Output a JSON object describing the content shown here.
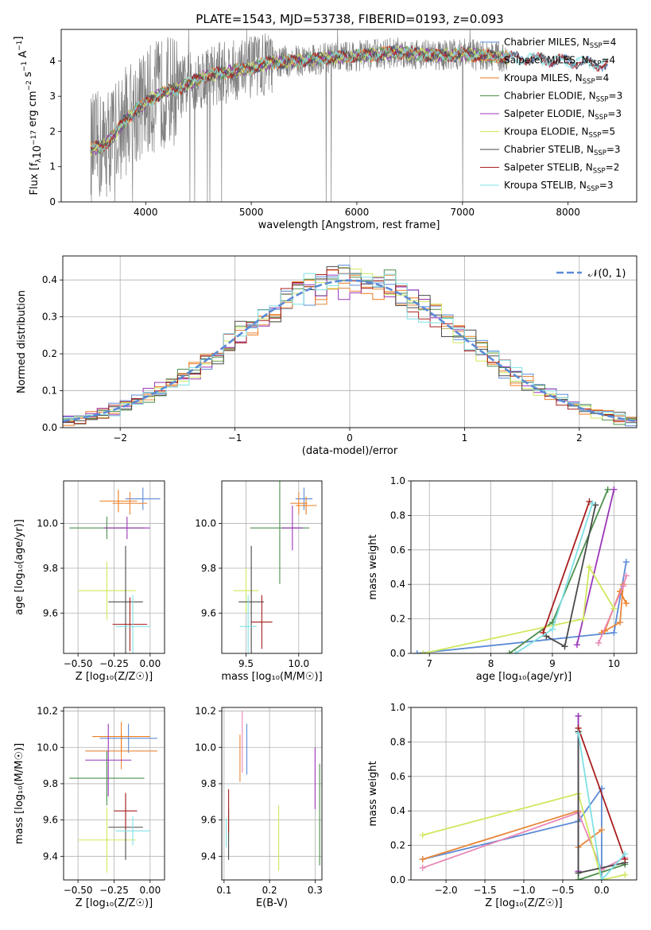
{
  "figure": {
    "title": "PLATE=1543, MJD=53738, FIBERID=0193, z=0.093"
  },
  "colors": {
    "Chabrier MILES": "#5b8bd6",
    "Salpeter MILES": "#e8873a",
    "Kroupa MILES": "#ee7b1e",
    "Chabrier ELODIE": "#4e8f4e",
    "Salpeter ELODIE": "#9a36b8",
    "Kroupa ELODIE": "#cfe85e",
    "Chabrier STELIB": "#4a4a4a",
    "Salpeter STELIB": "#a81d1d",
    "Kroupa STELIB": "#7fe0e4",
    "data": "#808080",
    "norm": "#5b8bd6",
    "pinkPoint": "#e887b5"
  },
  "chart_data": [
    {
      "id": "spectrum",
      "type": "line",
      "title": "PLATE=1543, MJD=53738, FIBERID=0193, z=0.093",
      "xlabel": "wavelength [Angstrom, rest frame]",
      "xlim": [
        3200,
        8650
      ],
      "ylim": [
        0,
        4.9
      ],
      "xticks": [
        4000,
        5000,
        6000,
        7000,
        8000
      ],
      "yticks": [
        0,
        1,
        2,
        3,
        4
      ],
      "legend": [
        "Chabrier MILES",
        "Salpeter MILES",
        "Kroupa MILES",
        "Chabrier ELODIE",
        "Salpeter ELODIE",
        "Kroupa ELODIE",
        "Chabrier STELIB",
        "Salpeter STELIB",
        "Kroupa STELIB"
      ],
      "legend_nssp": [
        4,
        4,
        4,
        3,
        3,
        5,
        3,
        2,
        3
      ],
      "legend_placement": "upper right",
      "continuum": [
        [
          3480,
          1.5
        ],
        [
          3600,
          1.6
        ],
        [
          3700,
          1.9
        ],
        [
          3800,
          2.3
        ],
        [
          3900,
          2.6
        ],
        [
          4000,
          2.8
        ],
        [
          4100,
          3.0
        ],
        [
          4200,
          3.15
        ],
        [
          4300,
          3.2
        ],
        [
          4400,
          3.35
        ],
        [
          4500,
          3.5
        ],
        [
          4600,
          3.6
        ],
        [
          4700,
          3.65
        ],
        [
          4800,
          3.7
        ],
        [
          4900,
          3.75
        ],
        [
          5000,
          3.8
        ],
        [
          5100,
          3.9
        ],
        [
          5200,
          3.95
        ],
        [
          5400,
          4.0
        ],
        [
          5600,
          4.05
        ],
        [
          5800,
          4.1
        ],
        [
          6000,
          4.15
        ],
        [
          6200,
          4.2
        ],
        [
          6400,
          4.25
        ],
        [
          6600,
          4.2
        ],
        [
          6800,
          4.15
        ],
        [
          7000,
          4.2
        ],
        [
          7200,
          4.15
        ],
        [
          7400,
          4.1
        ],
        [
          7700,
          4.05
        ],
        [
          8000,
          4.0
        ],
        [
          8300,
          3.9
        ]
      ]
    },
    {
      "id": "residuals",
      "type": "line",
      "xlabel": "(data-model)/error",
      "ylabel": "Normed distribution",
      "xlim": [
        -2.5,
        2.5
      ],
      "ylim": [
        0,
        0.465
      ],
      "xticks": [
        -2,
        -1,
        0,
        1,
        2
      ],
      "yticks": [
        0.0,
        0.1,
        0.2,
        0.3,
        0.4
      ],
      "gaussian_label": "𝒩(0, 1)",
      "grid": true
    },
    {
      "id": "age-vs-z",
      "type": "scatter",
      "xlabel": "Z [log₁₀(Z/Z☉)]",
      "ylabel": "age  [log₁₀(age/yr)]",
      "xlim": [
        -0.6,
        0.1
      ],
      "ylim": [
        9.42,
        10.19
      ],
      "xticks": [
        -0.5,
        -0.25,
        0.0
      ],
      "yticks": [
        9.6,
        9.8,
        10.0
      ],
      "grid": true,
      "points": [
        {
          "model": "Chabrier MILES",
          "x": -0.05,
          "xerr": 0.12,
          "y": 10.11,
          "yerr": 0.05
        },
        {
          "model": "Salpeter MILES",
          "x": -0.14,
          "xerr": 0.12,
          "y": 10.09,
          "yerr": 0.05
        },
        {
          "model": "Kroupa MILES",
          "x": -0.22,
          "xerr": 0.13,
          "y": 10.1,
          "yerr": 0.05
        },
        {
          "model": "Chabrier ELODIE",
          "x": -0.3,
          "xerr": 0.26,
          "y": 9.98,
          "yerr": 0.05
        },
        {
          "model": "Salpeter ELODIE",
          "x": -0.16,
          "xerr": 0.16,
          "y": 9.98,
          "yerr": 0.05
        },
        {
          "model": "Kroupa ELODIE",
          "x": -0.3,
          "xerr": 0.2,
          "y": 9.7,
          "yerr": 0.13
        },
        {
          "model": "Chabrier STELIB",
          "x": -0.17,
          "xerr": 0.12,
          "y": 9.65,
          "yerr": 0.25
        },
        {
          "model": "Salpeter STELIB",
          "x": -0.14,
          "xerr": 0.12,
          "y": 9.55,
          "yerr": 0.12
        },
        {
          "model": "Kroupa STELIB",
          "x": -0.12,
          "xerr": 0.12,
          "y": 9.54,
          "yerr": 0.14
        }
      ]
    },
    {
      "id": "age-vs-mass",
      "type": "scatter",
      "xlabel": "mass [log₁₀(M/M☉)]",
      "xlim": [
        9.27,
        10.22
      ],
      "ylim": [
        9.42,
        10.19
      ],
      "xticks": [
        9.5,
        10.0
      ],
      "yticks": [
        9.6,
        9.8,
        10.0
      ],
      "grid": true,
      "points": [
        {
          "model": "Chabrier MILES",
          "x": 10.05,
          "xerr": 0.08,
          "y": 10.11,
          "yerr": 0.05
        },
        {
          "model": "Salpeter MILES",
          "x": 10.0,
          "xerr": 0.08,
          "y": 10.09,
          "yerr": 0.05
        },
        {
          "model": "Kroupa MILES",
          "x": 10.07,
          "xerr": 0.1,
          "y": 10.08,
          "yerr": 0.04
        },
        {
          "model": "Chabrier ELODIE",
          "x": 9.82,
          "xerr": 0.28,
          "y": 9.98,
          "yerr": 0.25
        },
        {
          "model": "Salpeter ELODIE",
          "x": 9.94,
          "xerr": 0.1,
          "y": 9.98,
          "yerr": 0.1
        },
        {
          "model": "Kroupa ELODIE",
          "x": 9.5,
          "xerr": 0.12,
          "y": 9.7,
          "yerr": 0.1
        },
        {
          "model": "Chabrier STELIB",
          "x": 9.55,
          "xerr": 0.12,
          "y": 9.65,
          "yerr": 0.25
        },
        {
          "model": "Salpeter STELIB",
          "x": 9.65,
          "xerr": 0.1,
          "y": 9.56,
          "yerr": 0.12
        },
        {
          "model": "Kroupa STELIB",
          "x": 9.52,
          "xerr": 0.08,
          "y": 9.54,
          "yerr": 0.14
        }
      ]
    },
    {
      "id": "weight-vs-age",
      "type": "line",
      "xlabel": "age  [log₁₀(age/yr)]",
      "ylabel": "mass weight",
      "xlim": [
        6.7,
        10.37
      ],
      "ylim": [
        0.0,
        1.0
      ],
      "xticks": [
        7,
        8,
        9,
        10
      ],
      "yticks": [
        0.0,
        0.2,
        0.4,
        0.6,
        0.8,
        1.0
      ],
      "grid": true,
      "series": [
        {
          "model": "Chabrier MILES",
          "x": [
            6.8,
            10.0,
            10.2
          ],
          "y": [
            0.0,
            0.12,
            0.53
          ]
        },
        {
          "model": "Salpeter MILES",
          "x": [
            9.8,
            10.1,
            10.15
          ],
          "y": [
            0.12,
            0.18,
            0.4
          ]
        },
        {
          "model": "Kroupa MILES",
          "x": [
            9.85,
            10.1,
            10.2
          ],
          "y": [
            0.13,
            0.36,
            0.29
          ]
        },
        {
          "model": "pink",
          "x": [
            9.75,
            10.15,
            10.2
          ],
          "y": [
            0.06,
            0.39,
            0.45
          ]
        },
        {
          "model": "Chabrier ELODIE",
          "x": [
            8.3,
            9.0,
            9.9
          ],
          "y": [
            0.0,
            0.18,
            0.95
          ]
        },
        {
          "model": "Salpeter ELODIE",
          "x": [
            9.4,
            10.0
          ],
          "y": [
            0.05,
            0.95
          ]
        },
        {
          "model": "Kroupa ELODIE",
          "x": [
            6.9,
            9.5,
            9.6,
            10.0
          ],
          "y": [
            0.0,
            0.2,
            0.5,
            0.26
          ]
        },
        {
          "model": "Chabrier STELIB",
          "x": [
            8.9,
            9.2,
            9.7
          ],
          "y": [
            0.1,
            0.04,
            0.86
          ]
        },
        {
          "model": "Salpeter STELIB",
          "x": [
            8.85,
            9.6
          ],
          "y": [
            0.12,
            0.88
          ]
        },
        {
          "model": "Kroupa STELIB",
          "x": [
            8.4,
            9.0,
            9.65
          ],
          "y": [
            0.0,
            0.14,
            0.87
          ]
        }
      ]
    },
    {
      "id": "mass-vs-z",
      "type": "scatter",
      "xlabel": "Z [log₁₀(Z/Z☉)]",
      "ylabel": "mass [log₁₀(M/M☉)]",
      "xlim": [
        -0.6,
        0.1
      ],
      "ylim": [
        9.27,
        10.22
      ],
      "xticks": [
        -0.5,
        -0.25,
        0.0
      ],
      "yticks": [
        9.4,
        9.6,
        9.8,
        10.0,
        10.2
      ],
      "grid": true,
      "points": [
        {
          "model": "Chabrier MILES",
          "x": -0.15,
          "xerr": 0.2,
          "y": 10.05,
          "yerr": 0.08
        },
        {
          "model": "Salpeter MILES",
          "x": -0.2,
          "xerr": 0.25,
          "y": 9.98,
          "yerr": 0.1
        },
        {
          "model": "Kroupa MILES",
          "x": -0.2,
          "xerr": 0.2,
          "y": 10.06,
          "yerr": 0.08
        },
        {
          "model": "Chabrier ELODIE",
          "x": -0.3,
          "xerr": 0.26,
          "y": 9.83,
          "yerr": 0.15
        },
        {
          "model": "Salpeter ELODIE",
          "x": -0.29,
          "xerr": 0.16,
          "y": 9.93,
          "yerr": 0.2
        },
        {
          "model": "Kroupa ELODIE",
          "x": -0.3,
          "xerr": 0.2,
          "y": 9.49,
          "yerr": 0.18
        },
        {
          "model": "Chabrier STELIB",
          "x": -0.17,
          "xerr": 0.12,
          "y": 9.56,
          "yerr": 0.18
        },
        {
          "model": "Salpeter STELIB",
          "x": -0.17,
          "xerr": 0.08,
          "y": 9.65,
          "yerr": 0.1
        },
        {
          "model": "Kroupa STELIB",
          "x": -0.12,
          "xerr": 0.12,
          "y": 9.54,
          "yerr": 0.08
        }
      ]
    },
    {
      "id": "mass-vs-ebv",
      "type": "scatter",
      "xlabel": "E(B-V)",
      "xlim": [
        0.095,
        0.315
      ],
      "ylim": [
        9.27,
        10.22
      ],
      "xticks": [
        0.1,
        0.2,
        0.3
      ],
      "yticks": [
        9.4,
        9.6,
        9.8,
        10.0,
        10.2
      ],
      "grid": true,
      "points": [
        {
          "model": "Chabrier MILES",
          "x": 0.15,
          "y": 9.99,
          "yerr": 0.14
        },
        {
          "model": "Salpeter MILES",
          "x": 0.135,
          "y": 9.94,
          "yerr": 0.13
        },
        {
          "model": "pink",
          "x": 0.14,
          "y": 10.03,
          "yerr": 0.17
        },
        {
          "model": "Chabrier ELODIE",
          "x": 0.31,
          "y": 9.63,
          "yerr": 0.28
        },
        {
          "model": "Salpeter ELODIE",
          "x": 0.3,
          "y": 9.83,
          "yerr": 0.17
        },
        {
          "model": "Kroupa ELODIE",
          "x": 0.22,
          "y": 9.5,
          "yerr": 0.18
        },
        {
          "model": "Chabrier STELIB",
          "x": 0.11,
          "y": 9.52,
          "yerr": 0.14
        },
        {
          "model": "Salpeter STELIB",
          "x": 0.11,
          "y": 9.65,
          "yerr": 0.12
        },
        {
          "model": "Kroupa STELIB",
          "x": 0.105,
          "y": 9.53,
          "yerr": 0.08
        }
      ]
    },
    {
      "id": "weight-vs-z",
      "type": "line",
      "xlabel": "Z [log₁₀(Z/Z☉)]",
      "ylabel": "mass weight",
      "xlim": [
        -2.45,
        0.45
      ],
      "ylim": [
        0.0,
        1.0
      ],
      "xticks": [
        -2.0,
        -1.5,
        -1.0,
        -0.5,
        0.0
      ],
      "yticks": [
        0.0,
        0.2,
        0.4,
        0.6,
        0.8,
        1.0
      ],
      "grid": true,
      "series": [
        {
          "model": "Chabrier MILES",
          "x": [
            -2.3,
            -0.3,
            0.0,
            0.0
          ],
          "y": [
            0.12,
            0.34,
            0.53,
            0.0
          ]
        },
        {
          "model": "Salpeter MILES",
          "x": [
            -2.3,
            -0.3,
            -0.3,
            0.0
          ],
          "y": [
            0.12,
            0.4,
            0.19,
            0.29
          ]
        },
        {
          "model": "pink",
          "x": [
            -2.3,
            -0.3,
            0.0,
            0.3
          ],
          "y": [
            0.07,
            0.39,
            0.06,
            0.13
          ]
        },
        {
          "model": "Chabrier ELODIE",
          "x": [
            -0.3,
            -0.3,
            0.3
          ],
          "y": [
            0.95,
            0.0,
            0.09
          ]
        },
        {
          "model": "Salpeter ELODIE",
          "x": [
            -0.3,
            -0.3
          ],
          "y": [
            0.95,
            0.05
          ]
        },
        {
          "model": "Kroupa ELODIE",
          "x": [
            -2.3,
            -0.3,
            0.0,
            0.3
          ],
          "y": [
            0.26,
            0.5,
            0.0,
            0.03
          ]
        },
        {
          "model": "Chabrier STELIB",
          "x": [
            -0.3,
            -0.3,
            0.3
          ],
          "y": [
            0.86,
            0.04,
            0.1
          ]
        },
        {
          "model": "Salpeter STELIB",
          "x": [
            -0.3,
            0.3
          ],
          "y": [
            0.88,
            0.12
          ]
        },
        {
          "model": "Kroupa STELIB",
          "x": [
            -0.3,
            0.0,
            0.3
          ],
          "y": [
            0.85,
            0.0,
            0.15
          ]
        }
      ]
    }
  ]
}
